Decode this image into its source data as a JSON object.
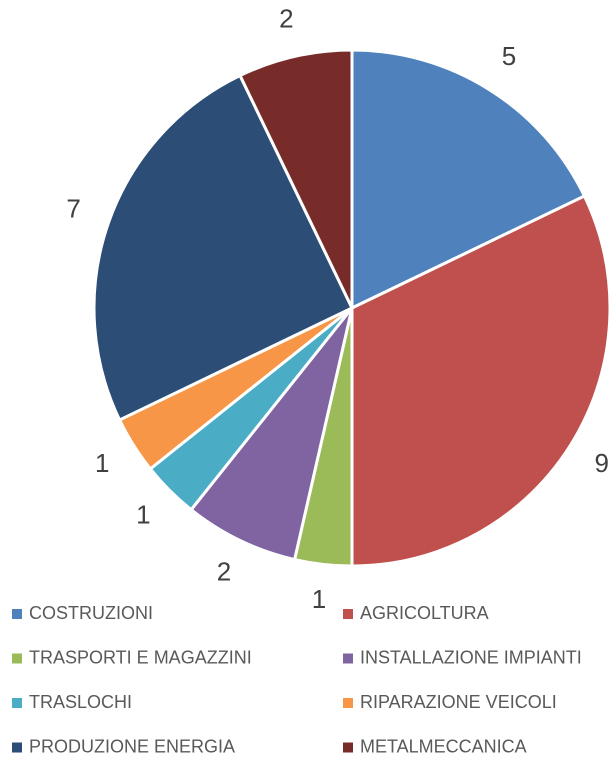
{
  "chart_data": {
    "type": "pie",
    "categories": [
      "COSTRUZIONI",
      "AGRICOLTURA",
      "TRASPORTI E MAGAZZINI",
      "INSTALLAZIONE IMPIANTI",
      "TRASLOCHI",
      "RIPARAZIONE VEICOLI",
      "PRODUZIONE ENERGIA",
      "METALMECCANICA"
    ],
    "values": [
      5,
      9,
      1,
      2,
      1,
      1,
      7,
      2
    ],
    "colors": [
      "#4f81bd",
      "#c0504d",
      "#9bbb59",
      "#8064a2",
      "#4bacc6",
      "#f79646",
      "#2c4d75",
      "#772c2a"
    ],
    "legend": "bottom"
  }
}
